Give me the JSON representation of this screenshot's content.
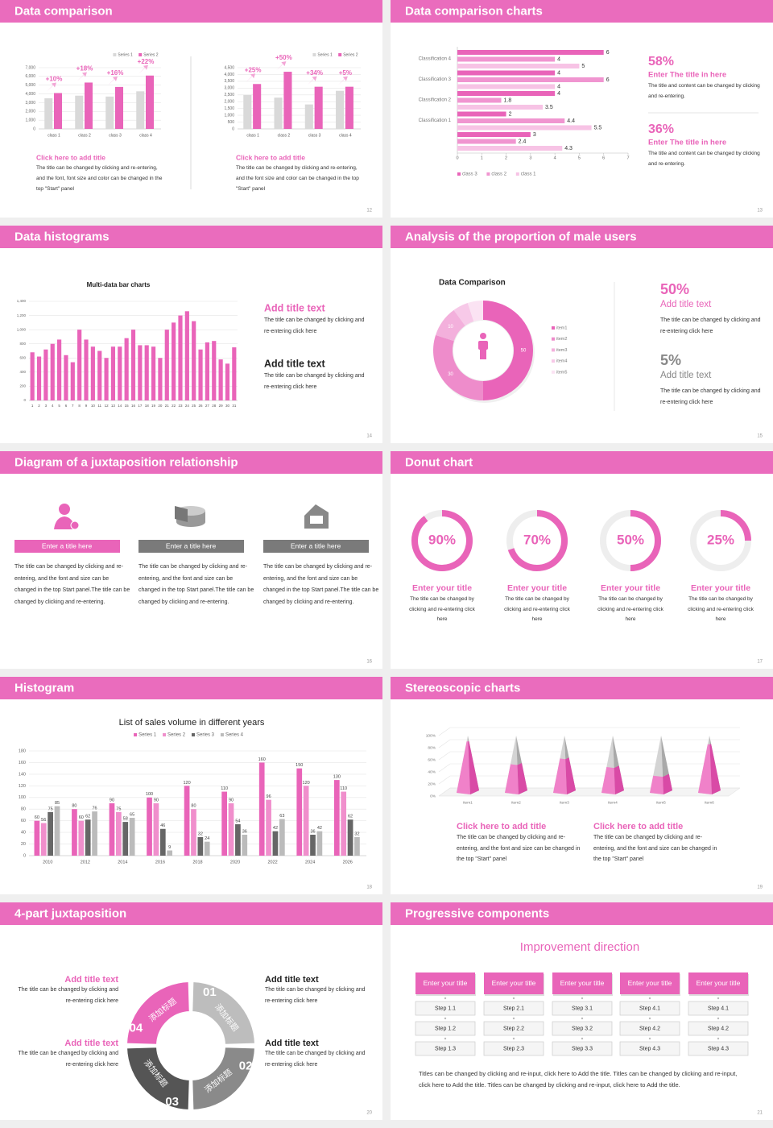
{
  "slides": [
    {
      "title": "Data comparison",
      "page": 12,
      "charts": [
        {
          "type": "bar",
          "categories": [
            "class 1",
            "class 2",
            "class 3",
            "class 4"
          ],
          "series": [
            {
              "name": "Series 1",
              "color": "#d9d9d9",
              "values": [
                3500,
                3800,
                3700,
                4300
              ]
            },
            {
              "name": "Series 2",
              "color": "#e964b9",
              "values": [
                4100,
                5300,
                4800,
                6100
              ]
            }
          ],
          "annotations": [
            "+10%",
            "+18%",
            "+16%",
            "+22%"
          ],
          "grid": true,
          "ylim": [
            0,
            7000
          ],
          "yticks": [
            0,
            {
              "value": 1000,
              "label": "1,000"
            },
            {
              "value": 2000,
              "label": "2,000"
            },
            {
              "value": 3000,
              "label": "3,000"
            },
            {
              "value": 4000,
              "label": "4,000"
            },
            {
              "value": 5000,
              "label": "5,000"
            },
            {
              "value": 6000,
              "label": "6,000"
            },
            {
              "value": 7000,
              "label": "7,000"
            }
          ]
        },
        {
          "type": "bar",
          "categories": [
            "class 1",
            "class 2",
            "class 3",
            "class 4"
          ],
          "series": [
            {
              "name": "Series 1",
              "color": "#d9d9d9",
              "values": [
                2500,
                2300,
                1800,
                2800
              ]
            },
            {
              "name": "Series 2",
              "color": "#e964b9",
              "values": [
                3300,
                4200,
                3100,
                3100
              ]
            }
          ],
          "annotations": [
            "+25%",
            "+50%",
            "+34%",
            "+5%"
          ],
          "grid": true,
          "ylim": [
            0,
            4500
          ],
          "yticks": [
            0,
            500,
            {
              "value": 1000,
              "label": "1,000"
            },
            {
              "value": 1500,
              "label": "1,500"
            },
            {
              "value": 2000,
              "label": "2,000"
            },
            {
              "value": 2500,
              "label": "2,500"
            },
            {
              "value": 3000,
              "label": "3,000"
            },
            {
              "value": 3500,
              "label": "3,500"
            },
            {
              "value": 4000,
              "label": "4,000"
            },
            {
              "value": 4500,
              "label": "4,500"
            }
          ]
        }
      ],
      "blocks": [
        {
          "heading": "Click here to add title",
          "text": "The title can be changed by clicking and re-entering, and the font, font size and color can be changed in the top \"Start\" panel"
        },
        {
          "heading": "Click here to add title",
          "text": "The title can be changed by clicking and re-entering, and the font size and color can be changed in the top \"Start\" panel"
        }
      ]
    },
    {
      "title": "Data comparison charts",
      "page": 13,
      "charts": [
        {
          "type": "barh",
          "categories": [
            "Classification 4",
            "Classification 3",
            "Classification 2",
            "Classification 1",
            null
          ],
          "series": [
            {
              "name": "class 3",
              "color": "#e964b9",
              "values": [
                6,
                4,
                4,
                2,
                3
              ]
            },
            {
              "name": "class 2",
              "color": "#f095d0",
              "values": [
                4,
                6,
                1.8,
                4.4,
                2.4
              ]
            },
            {
              "name": "class 1",
              "color": "#f7c3e5",
              "values": [
                5,
                4,
                3.5,
                5.5,
                4.3
              ]
            }
          ],
          "xlim": [
            0,
            7
          ],
          "xticks": [
            0,
            1,
            2,
            3,
            4,
            5,
            6,
            7
          ]
        }
      ],
      "blocks": [
        {
          "value": "58%",
          "heading": "Enter The title in here",
          "text": "The title and content can be changed by clicking and re-entering."
        },
        {
          "value": "36%",
          "heading": "Enter The title in here",
          "text": "The title and content can be changed by clicking and re-entering."
        }
      ]
    },
    {
      "title": "Data histograms",
      "page": 14,
      "charts": [
        {
          "type": "bar",
          "title": "Multi-data bar charts",
          "categories": [
            "1",
            "2",
            "3",
            "4",
            "5",
            "6",
            "7",
            "8",
            "9",
            "10",
            "11",
            "12",
            "13",
            "14",
            "15",
            "16",
            "17",
            "18",
            "19",
            "20",
            "21",
            "22",
            "23",
            "24",
            "25",
            "26",
            "27",
            "28",
            "29",
            "30",
            "31"
          ],
          "values": [
            680,
            620,
            720,
            800,
            860,
            640,
            540,
            1000,
            860,
            760,
            700,
            600,
            760,
            760,
            880,
            1000,
            780,
            780,
            760,
            600,
            1000,
            1100,
            1200,
            1260,
            1120,
            720,
            820,
            840,
            580,
            520,
            750
          ],
          "color": "#e964b9",
          "grid": true,
          "ylim": [
            0,
            1400
          ],
          "yticks": [
            0,
            200,
            400,
            600,
            800,
            {
              "value": 1000,
              "label": "1,000"
            },
            {
              "value": 1200,
              "label": "1,200"
            },
            {
              "value": 1400,
              "label": "1,400"
            }
          ]
        }
      ],
      "blocks": [
        {
          "heading": "Add title text",
          "text": "The title can be changed by clicking and re-entering click here"
        },
        {
          "heading": "Add title text",
          "text": "The title can be changed by clicking and re-entering click here"
        }
      ]
    },
    {
      "title": "Analysis of the proportion of male users",
      "page": 15,
      "charts": [
        {
          "type": "donut",
          "title": "Data Comparison",
          "categories": [
            "item1",
            "item2",
            "item3",
            "item4",
            "item5"
          ],
          "values": [
            50,
            30,
            10,
            5,
            5
          ],
          "value_labels": [
            "50",
            "30",
            "10",
            null,
            null
          ],
          "colors": [
            "#e964b9",
            "#ee8ccb",
            "#f3b0dc",
            "#f7c9e8",
            "#fbe3f3"
          ]
        }
      ],
      "blocks": [
        {
          "value": "50%",
          "heading": "Add title text",
          "text": "The title can be changed by clicking and re-entering click here"
        },
        {
          "value": "5%",
          "heading": "Add title text",
          "text": "The title can be changed by clicking and re-entering click here"
        }
      ]
    },
    {
      "title": "Diagram of a juxtaposition relationship",
      "page": 16,
      "blocks": [
        {
          "heading": "Enter a title here",
          "text": "The title can be changed by clicking and re-entering, and the font and size can be changed in the top Start panel.The title can be changed by clicking and re-entering."
        },
        {
          "heading": "Enter a title here",
          "text": "The title can be changed by clicking and re-entering, and the font and size can be changed in the top Start panel.The title can be changed by clicking and re-entering."
        },
        {
          "heading": "Enter a title here",
          "text": "The title can be changed by clicking and re-entering, and the font and size can be changed in the top Start panel.The title can be changed by clicking and re-entering."
        }
      ]
    },
    {
      "title": "Donut chart",
      "page": 17,
      "charts": [
        {
          "type": "ring",
          "values": [
            90,
            70,
            50,
            25
          ],
          "value_labels": [
            "90%",
            "70%",
            "50%",
            "25%"
          ],
          "color": "#e964b9",
          "track_color": "#eeeeee"
        }
      ],
      "blocks": [
        {
          "heading": "Enter your title",
          "text": "The title can be changed by clicking and re-entering click here"
        },
        {
          "heading": "Enter your title",
          "text": "The title can be changed by clicking and re-entering click here"
        },
        {
          "heading": "Enter your title",
          "text": "The title can be changed by clicking and re-entering click here"
        },
        {
          "heading": "Enter your title",
          "text": "The title can be changed by clicking and re-entering click here"
        }
      ]
    },
    {
      "title": "Histogram",
      "page": 18,
      "charts": [
        {
          "type": "bar",
          "title": "List of sales volume in different years",
          "categories": [
            "2010",
            "2012",
            "2014",
            "2016",
            "2018",
            "2020",
            "2022",
            "2024",
            "2026"
          ],
          "series": [
            {
              "name": "Series 1",
              "color": "#e964b9",
              "values": [
                60,
                80,
                90,
                100,
                120,
                110,
                160,
                150,
                130
              ]
            },
            {
              "name": "Series 2",
              "color": "#f08fcc",
              "values": [
                56,
                60,
                75,
                90,
                80,
                90,
                96,
                120,
                110
              ]
            },
            {
              "name": "Series 3",
              "color": "#666666",
              "values": [
                75,
                62,
                58,
                46,
                32,
                54,
                42,
                36,
                62
              ]
            },
            {
              "name": "Series 4",
              "color": "#bbbbbb",
              "values": [
                85,
                76,
                65,
                9,
                24,
                36,
                63,
                42,
                32
              ]
            }
          ],
          "data_labels": true,
          "grid": true,
          "ylim": [
            0,
            180
          ],
          "yticks": [
            0,
            20,
            40,
            60,
            80,
            100,
            120,
            140,
            160,
            180
          ]
        }
      ]
    },
    {
      "title": "Stereoscopic charts",
      "page": 19,
      "charts": [
        {
          "type": "pyramid",
          "categories": [
            "item1",
            "item2",
            "item3",
            "item4",
            "item5",
            "item6"
          ],
          "values": [
            90,
            50,
            60,
            45,
            30,
            85
          ],
          "color": "#e964b9",
          "grid": true,
          "ylim": [
            0,
            100
          ],
          "yticks": [
            {
              "value": 0,
              "label": "0%"
            },
            {
              "value": 20,
              "label": "20%"
            },
            {
              "value": 40,
              "label": "40%"
            },
            {
              "value": 60,
              "label": "60%"
            },
            {
              "value": 80,
              "label": "80%"
            },
            {
              "value": 100,
              "label": "100%"
            }
          ]
        }
      ],
      "blocks": [
        {
          "heading": "Click here to add title",
          "text": "The title can be changed by clicking and re-entering, and the font and size can be changed in the top \"Start\" panel"
        },
        {
          "heading": "Click here to add title",
          "text": "The title can be changed by clicking and re-entering, and the font and size can be changed in the top \"Start\" panel"
        }
      ]
    },
    {
      "title": "4-part juxtaposition",
      "page": 20,
      "segments": [
        {
          "number": "01",
          "label": "添加标题"
        },
        {
          "number": "02",
          "label": "添加标题"
        },
        {
          "number": "03",
          "label": "添加标题"
        },
        {
          "number": "04",
          "label": "添加标题"
        }
      ],
      "blocks": [
        {
          "heading": "Add title text",
          "text": "The title can be changed by clicking and re-entering click here"
        },
        {
          "heading": "Add title text",
          "text": "The title can be changed by clicking and re-entering click here"
        },
        {
          "heading": "Add title text",
          "text": "The title can be changed by clicking and re-entering click here"
        },
        {
          "heading": "Add title text",
          "text": "The title can be changed by clicking and re-entering click here"
        }
      ]
    },
    {
      "title": "Progressive components",
      "page": 21,
      "heading": "Improvement direction",
      "columns": [
        {
          "title": "Enter your title",
          "steps": [
            "Step 1.1",
            "Step 1.2",
            "Step 1.3"
          ]
        },
        {
          "title": "Enter your title",
          "steps": [
            "Step 2.1",
            "Step 2.2",
            "Step 2.3"
          ]
        },
        {
          "title": "Enter your title",
          "steps": [
            "Step 3.1",
            "Step 3.2",
            "Step 3.3"
          ]
        },
        {
          "title": "Enter your title",
          "steps": [
            "Step 4.1",
            "Step 4.2",
            "Step 4.3"
          ]
        },
        {
          "title": "Enter your title",
          "steps": [
            "Step 4.1",
            "Step 4.2",
            "Step 4.3"
          ]
        }
      ],
      "footer": "Titles can be changed by clicking and re-input, click here to Add the title. Titles can be changed by clicking and re-input, click here to Add the title. Titles can be changed by clicking and re-input, click here to Add the title."
    }
  ]
}
